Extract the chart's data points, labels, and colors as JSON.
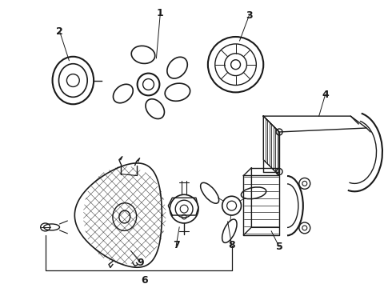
{
  "background_color": "#ffffff",
  "line_color": "#1a1a1a",
  "line_width": 1.0,
  "figsize": [
    4.9,
    3.6
  ],
  "dpi": 100,
  "label_fontsize": 9,
  "label_fontweight": "bold"
}
